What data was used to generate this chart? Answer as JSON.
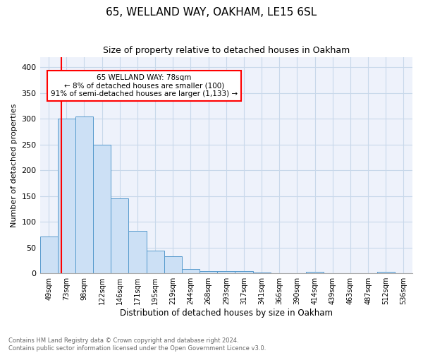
{
  "title1": "65, WELLAND WAY, OAKHAM, LE15 6SL",
  "title2": "Size of property relative to detached houses in Oakham",
  "xlabel": "Distribution of detached houses by size in Oakham",
  "ylabel": "Number of detached properties",
  "footnote": "Contains HM Land Registry data © Crown copyright and database right 2024.\nContains public sector information licensed under the Open Government Licence v3.0.",
  "categories": [
    "49sqm",
    "73sqm",
    "98sqm",
    "122sqm",
    "146sqm",
    "171sqm",
    "195sqm",
    "219sqm",
    "244sqm",
    "268sqm",
    "293sqm",
    "317sqm",
    "341sqm",
    "366sqm",
    "390sqm",
    "414sqm",
    "439sqm",
    "463sqm",
    "487sqm",
    "512sqm",
    "536sqm"
  ],
  "values": [
    72,
    300,
    305,
    250,
    145,
    83,
    44,
    33,
    8,
    5,
    5,
    4,
    2,
    0,
    0,
    3,
    0,
    0,
    0,
    3,
    0
  ],
  "bar_color": "#cce0f5",
  "bar_edge_color": "#5599cc",
  "annotation_box_text": "65 WELLAND WAY: 78sqm\n← 8% of detached houses are smaller (100)\n91% of semi-detached houses are larger (1,133) →",
  "annotation_box_color": "white",
  "annotation_box_edge_color": "red",
  "annotation_line_color": "red",
  "ylim": [
    0,
    420
  ],
  "yticks": [
    0,
    50,
    100,
    150,
    200,
    250,
    300,
    350,
    400
  ],
  "grid_color": "#c8d8ea",
  "background_color": "#eef2fb"
}
